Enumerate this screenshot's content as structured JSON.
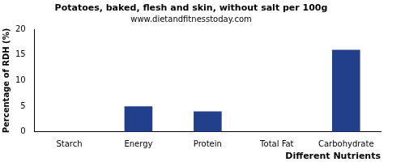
{
  "chart_data": {
    "type": "bar",
    "title": "Potatoes, baked, flesh and skin, without salt per 100g",
    "subtitle": "www.dietandfitnesstoday.com",
    "x_label": "Different Nutrients",
    "y_label": "Percentage of RDH (%)",
    "categories": [
      "Starch",
      "Energy",
      "Protein",
      "Total Fat",
      "Carbohydrate"
    ],
    "values": [
      0,
      5,
      4,
      0,
      16
    ],
    "color": "#223f8c",
    "ylim": [
      0,
      20
    ],
    "yticks": [
      0,
      5,
      10,
      15,
      20
    ],
    "grid": false
  }
}
